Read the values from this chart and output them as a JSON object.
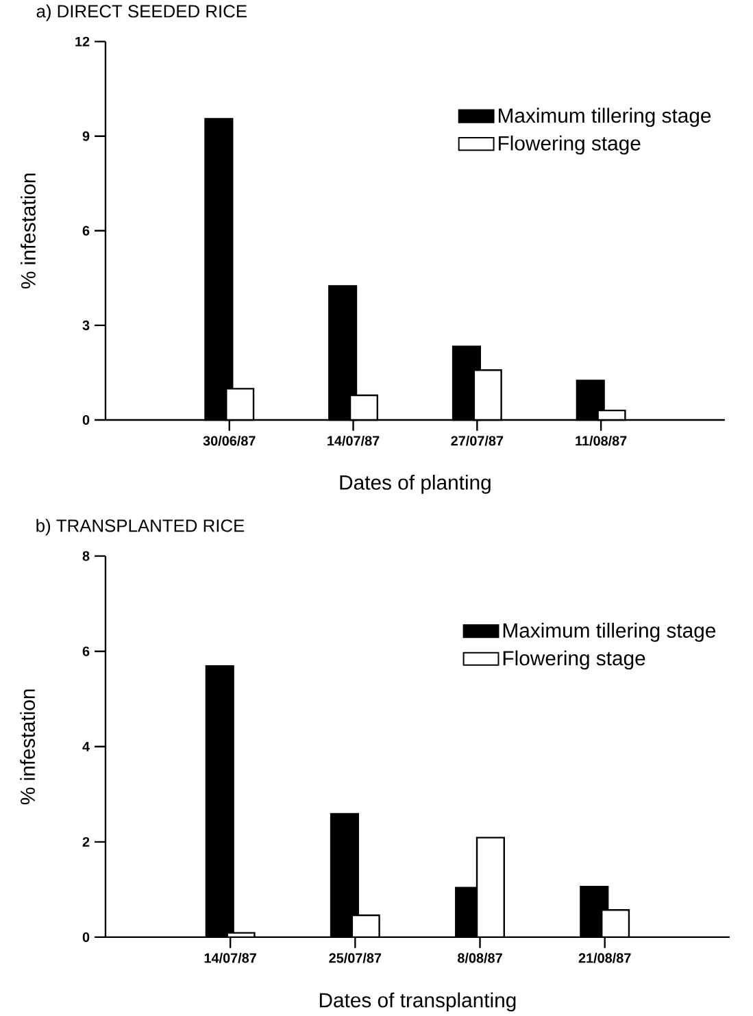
{
  "chart_data": [
    {
      "type": "bar",
      "title": "a) DIRECT SEEDED RICE",
      "xlabel": "Dates of planting",
      "ylabel": "% infestation",
      "categories": [
        "30/06/87",
        "14/07/87",
        "27/07/87",
        "11/08/87"
      ],
      "series": [
        {
          "name": "Maximum tillering stage",
          "color": "#000000",
          "values": [
            9.55,
            4.25,
            2.33,
            1.25
          ]
        },
        {
          "name": "Flowering stage",
          "color": "#ffffff",
          "values": [
            0.99,
            0.78,
            1.58,
            0.3
          ]
        }
      ],
      "ylim": [
        0,
        12
      ],
      "yticks": [
        0,
        3,
        6,
        9,
        12
      ],
      "legend": "top right"
    },
    {
      "type": "bar",
      "title": "b) TRANSPLANTED RICE",
      "xlabel": "Dates of transplanting",
      "ylabel": "% infestation",
      "categories": [
        "14/07/87",
        "25/07/87",
        "8/08/87",
        "21/08/87"
      ],
      "series": [
        {
          "name": "Maximum tillering stage",
          "color": "#000000",
          "values": [
            5.69,
            2.59,
            1.04,
            1.06
          ]
        },
        {
          "name": "Flowering stage",
          "color": "#ffffff",
          "values": [
            0.09,
            0.46,
            2.09,
            0.57
          ]
        }
      ],
      "ylim": [
        0,
        8
      ],
      "yticks": [
        0,
        2,
        4,
        6,
        8
      ],
      "legend": "top right"
    }
  ]
}
